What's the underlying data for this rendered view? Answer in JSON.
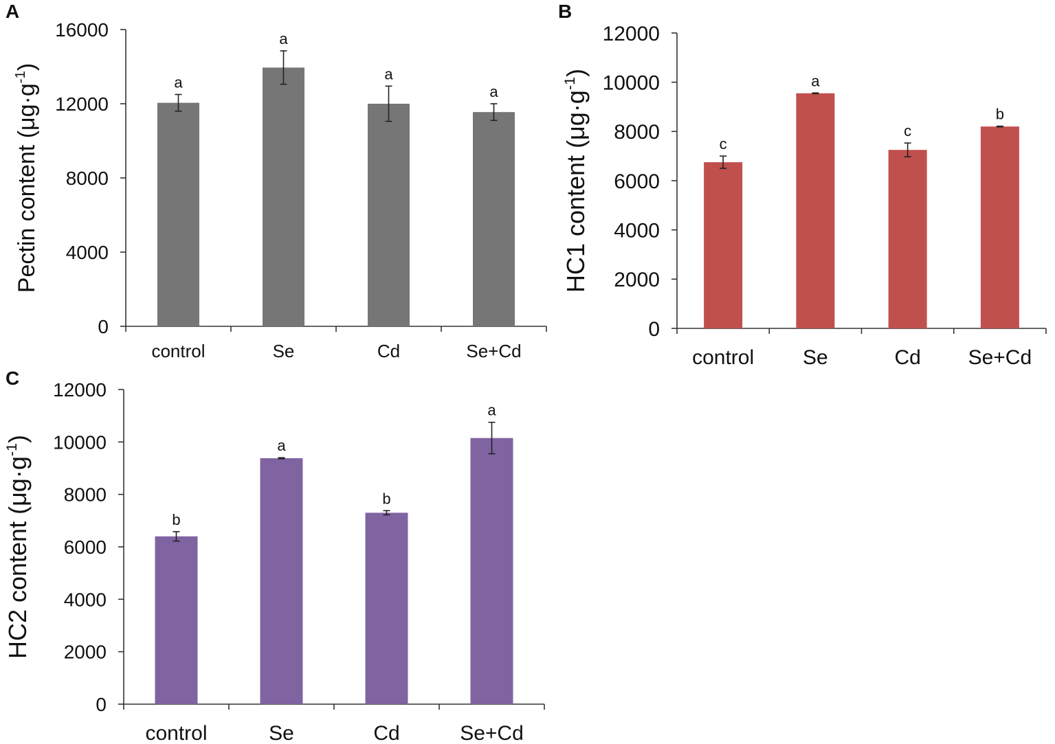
{
  "chart_data": [
    {
      "type": "bar",
      "panel": "A",
      "categories": [
        "control",
        "Se",
        "Cd",
        "Se+Cd"
      ],
      "values": [
        12050,
        13950,
        12000,
        11550
      ],
      "errors": [
        450,
        900,
        950,
        450
      ],
      "significance": [
        "a",
        "a",
        "a",
        "a"
      ],
      "yticks": [
        0,
        4000,
        8000,
        12000,
        16000
      ],
      "ylim": [
        0,
        16000
      ],
      "ylabel": "Pectin content (μg·g",
      "ylabel_sup": "-1",
      "ylabel_close": ")",
      "color": "#767676"
    },
    {
      "type": "bar",
      "panel": "B",
      "categories": [
        "control",
        "Se",
        "Cd",
        "Se+Cd"
      ],
      "values": [
        6750,
        9550,
        7250,
        8200
      ],
      "errors": [
        250,
        15,
        280,
        15
      ],
      "significance": [
        "c",
        "a",
        "c",
        "b"
      ],
      "yticks": [
        0,
        2000,
        4000,
        6000,
        8000,
        10000,
        12000
      ],
      "ylim": [
        0,
        12000
      ],
      "ylabel": "HC1 content (μg·g",
      "ylabel_sup": "-1",
      "ylabel_close": ")",
      "color": "#c0504d"
    },
    {
      "type": "bar",
      "panel": "C",
      "categories": [
        "control",
        "Se",
        "Cd",
        "Se+Cd"
      ],
      "values": [
        6400,
        9380,
        7300,
        10150
      ],
      "errors": [
        180,
        20,
        80,
        600
      ],
      "significance": [
        "b",
        "a",
        "b",
        "a"
      ],
      "yticks": [
        0,
        2000,
        4000,
        6000,
        8000,
        10000,
        12000
      ],
      "ylim": [
        0,
        12000
      ],
      "ylabel": "HC2 content (μg·g",
      "ylabel_sup": "-1",
      "ylabel_close": ")",
      "color": "#8064a2"
    }
  ]
}
